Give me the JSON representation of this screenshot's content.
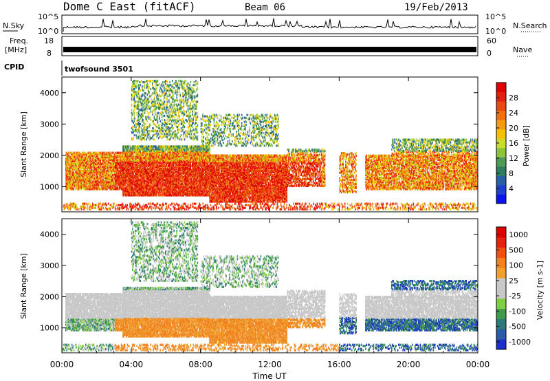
{
  "header": {
    "title": "Dome C East (fitACF)",
    "beam": "Beam 06",
    "date": "19/Feb/2013"
  },
  "status_panels": {
    "nsky": {
      "label": "N.Sky",
      "tick_top": "10^5",
      "tick_bottom": "10^0"
    },
    "nsearch": {
      "label": "N.Search",
      "tick_top": "10^5",
      "tick_bottom": "10^0"
    },
    "freq": {
      "label_line1": "Freq.",
      "label_line2": "[MHz]",
      "tick_top": "18",
      "tick_bottom": "8"
    },
    "nave": {
      "label": "Nave",
      "tick_top": "60",
      "tick_bottom": "0"
    },
    "cpid": {
      "label": "CPID",
      "value": "twofsound 3501"
    }
  },
  "chart_data": [
    {
      "type": "heatmap",
      "name": "power-panel",
      "ylabel": "Slant Range [km]",
      "y_ticks": [
        "1000",
        "2000",
        "3000",
        "4000"
      ],
      "ylim": [
        200,
        4500
      ],
      "colorbar": {
        "label": "Power [dB]",
        "ticks": [
          "4",
          "8",
          "12",
          "16",
          "20",
          "24",
          "28"
        ],
        "colors": [
          "#0a14f0",
          "#1f3fd0",
          "#2a5fa8",
          "#2f7d5f",
          "#4f9a55",
          "#8dc43c",
          "#c8dc28",
          "#f5c000",
          "#f39a10",
          "#ef7010",
          "#ea4a10",
          "#e42010",
          "#e00000"
        ]
      }
    },
    {
      "type": "heatmap",
      "name": "velocity-panel",
      "ylabel": "Slant Range [km]",
      "y_ticks": [
        "1000",
        "2000",
        "3000",
        "4000"
      ],
      "ylim": [
        200,
        4500
      ],
      "colorbar": {
        "label": "Velocity [m s-1]",
        "ticks": [
          "1000",
          "500",
          "100",
          "25",
          "-25",
          "-100",
          "-500",
          "-1000"
        ],
        "colors": [
          "#1c2fc8",
          "#2a5aa8",
          "#2e7a78",
          "#3f9a4a",
          "#7ed040",
          "#c8c8c8",
          "#c8c8c8",
          "#f0a030",
          "#f08020",
          "#f05010",
          "#e82010",
          "#e00000"
        ]
      }
    }
  ],
  "x_axis": {
    "label": "Time UT",
    "ticks": [
      "00:00",
      "04:00",
      "08:00",
      "12:00",
      "16:00",
      "20:00",
      "00:00"
    ]
  }
}
